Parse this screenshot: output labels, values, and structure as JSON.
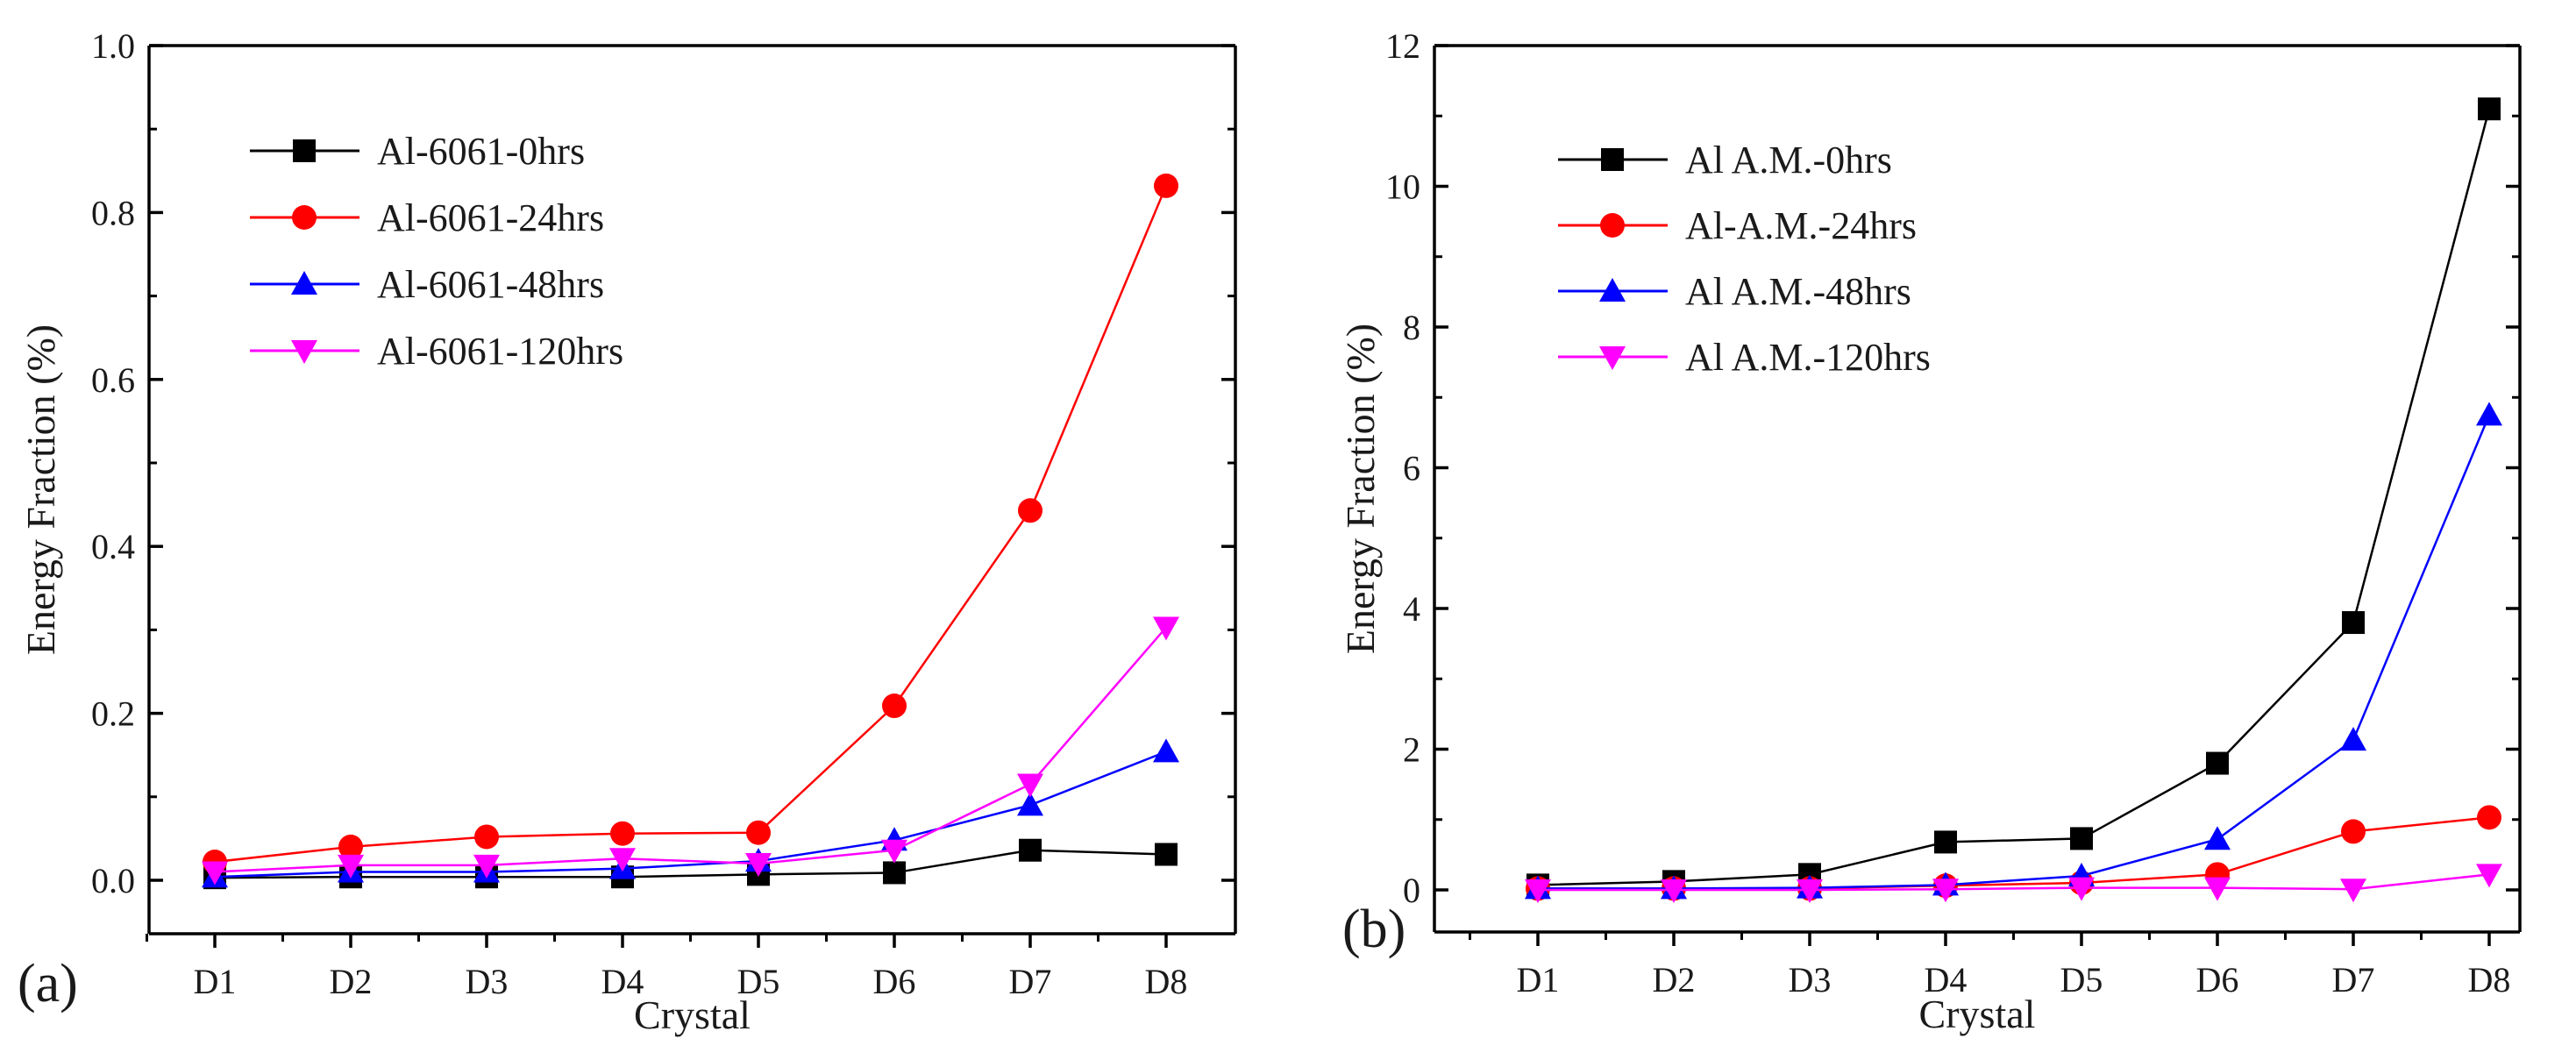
{
  "chart_data": [
    {
      "panel_label": "(a)",
      "type": "line",
      "title": "",
      "xlabel": "Crystal",
      "ylabel": "Energy Fraction (%)",
      "categories": [
        "D1",
        "D2",
        "D3",
        "D4",
        "D5",
        "D6",
        "D7",
        "D8"
      ],
      "ylim": [
        0,
        1.0
      ],
      "yticks": [
        0.0,
        0.2,
        0.4,
        0.6,
        0.8,
        1.0
      ],
      "ytick_labels": [
        "0.0",
        "0.2",
        "0.4",
        "0.6",
        "0.8",
        "1.0"
      ],
      "grid": false,
      "legend_position": "top-left",
      "series": [
        {
          "name": "Al-6061-0hrs",
          "color": "#000000",
          "marker": "square",
          "values": [
            0.003,
            0.004,
            0.004,
            0.004,
            0.007,
            0.009,
            0.036,
            0.031
          ]
        },
        {
          "name": "Al-6061-24hrs",
          "color": "#ff0000",
          "marker": "circle",
          "values": [
            0.022,
            0.04,
            0.052,
            0.056,
            0.057,
            0.209,
            0.443,
            0.832
          ]
        },
        {
          "name": "Al-6061-48hrs",
          "color": "#0000ff",
          "marker": "triangle-up",
          "values": [
            0.004,
            0.01,
            0.01,
            0.014,
            0.023,
            0.048,
            0.09,
            0.154
          ]
        },
        {
          "name": "Al-6061-120hrs",
          "color": "#ff00ff",
          "marker": "triangle-down",
          "values": [
            0.01,
            0.018,
            0.018,
            0.026,
            0.02,
            0.036,
            0.115,
            0.303
          ]
        }
      ]
    },
    {
      "panel_label": "(b)",
      "type": "line",
      "title": "",
      "xlabel": "Crystal",
      "ylabel": "Energy Fraction (%)",
      "categories": [
        "D1",
        "D2",
        "D3",
        "D4",
        "D5",
        "D6",
        "D7",
        "D8"
      ],
      "ylim": [
        0,
        12
      ],
      "yticks": [
        0,
        2,
        4,
        6,
        8,
        10,
        12
      ],
      "ytick_labels": [
        "0",
        "2",
        "4",
        "6",
        "8",
        "10",
        "12"
      ],
      "grid": false,
      "legend_position": "top-left",
      "series": [
        {
          "name": "Al A.M.-0hrs",
          "color": "#000000",
          "marker": "square",
          "values": [
            0.07,
            0.12,
            0.22,
            0.68,
            0.73,
            1.8,
            3.8,
            11.1
          ]
        },
        {
          "name": "Al-A.M.-24hrs",
          "color": "#ff0000",
          "marker": "circle",
          "values": [
            0.02,
            0.02,
            0.02,
            0.06,
            0.1,
            0.22,
            0.83,
            1.03
          ]
        },
        {
          "name": "Al A.M.-48hrs",
          "color": "#0000ff",
          "marker": "triangle-up",
          "values": [
            0.02,
            0.02,
            0.03,
            0.07,
            0.2,
            0.72,
            2.13,
            6.75
          ]
        },
        {
          "name": "Al A.M.-120hrs",
          "color": "#ff00ff",
          "marker": "triangle-down",
          "values": [
            0.0,
            0.0,
            0.0,
            0.01,
            0.03,
            0.03,
            0.01,
            0.22
          ]
        }
      ]
    }
  ]
}
